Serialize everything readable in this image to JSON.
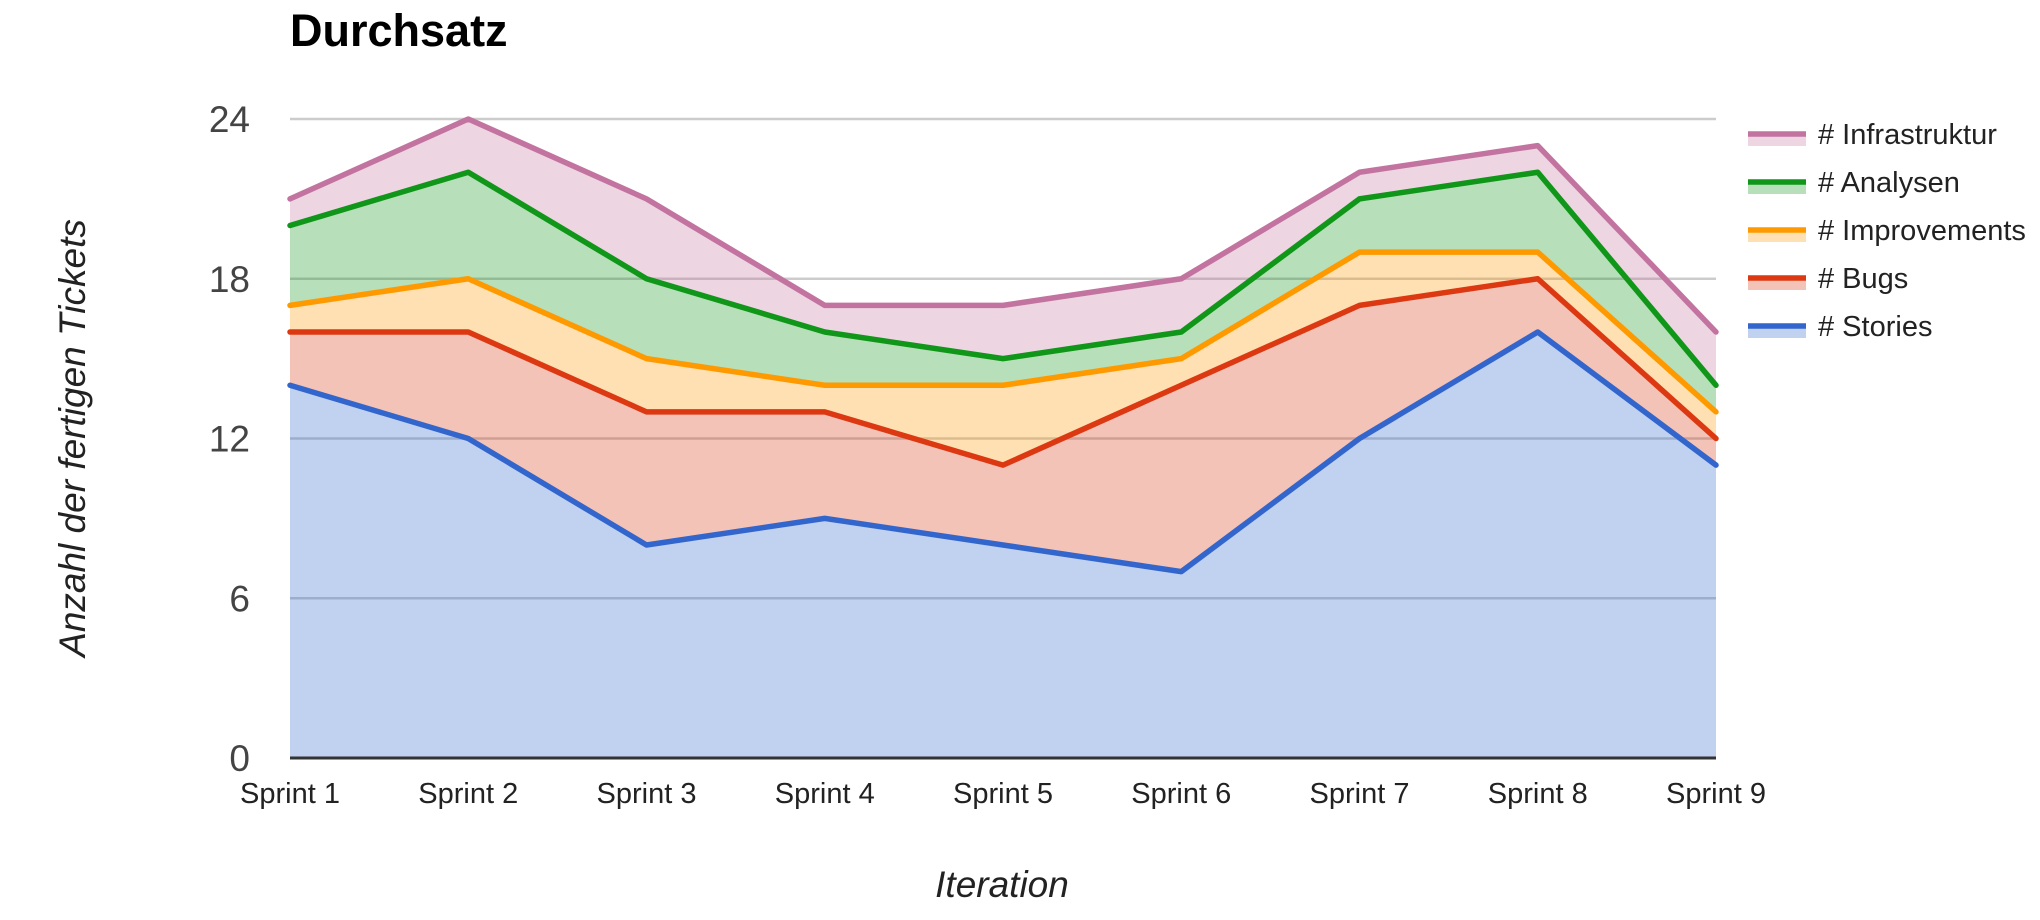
{
  "chart_data": {
    "type": "area",
    "stacked": true,
    "title": "Durchsatz",
    "xlabel": "Iteration",
    "ylabel": "Anzahl der fertigen Tickets",
    "categories": [
      "Sprint 1",
      "Sprint 2",
      "Sprint 3",
      "Sprint 4",
      "Sprint 5",
      "Sprint 6",
      "Sprint 7",
      "Sprint 8",
      "Sprint 9"
    ],
    "ylim": [
      0,
      24
    ],
    "yticks": [
      0,
      6,
      12,
      18,
      24
    ],
    "grid": true,
    "legend_position": "right",
    "series": [
      {
        "name": "# Stories",
        "color": "#3366cc",
        "values": [
          14,
          12,
          8,
          9,
          8,
          7,
          12,
          16,
          11
        ]
      },
      {
        "name": "# Bugs",
        "color": "#dc3912",
        "values": [
          2,
          4,
          5,
          4,
          3,
          7,
          5,
          2,
          1
        ]
      },
      {
        "name": "# Improvements",
        "color": "#ff9900",
        "values": [
          1,
          2,
          2,
          1,
          3,
          1,
          2,
          1,
          1
        ]
      },
      {
        "name": "# Analysen",
        "color": "#109618",
        "values": [
          3,
          4,
          3,
          2,
          1,
          1,
          2,
          3,
          1
        ]
      },
      {
        "name": "# Infrastruktur",
        "color": "#c2739f",
        "values": [
          1,
          2,
          3,
          1,
          2,
          2,
          1,
          1,
          2
        ]
      }
    ]
  }
}
